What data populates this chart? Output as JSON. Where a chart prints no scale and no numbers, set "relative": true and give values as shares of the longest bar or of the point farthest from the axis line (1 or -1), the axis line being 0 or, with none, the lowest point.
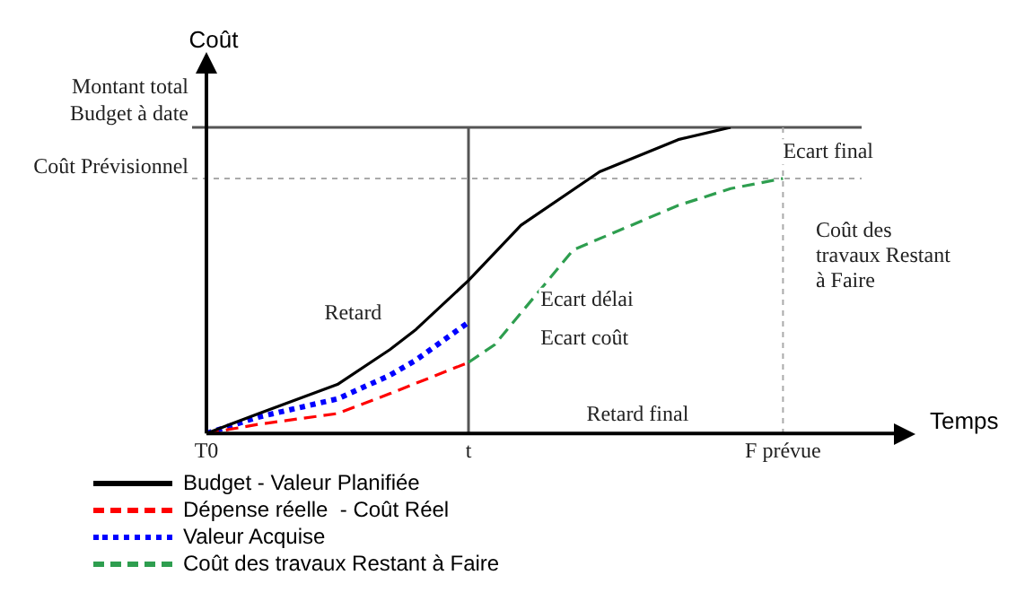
{
  "chart_data": {
    "type": "line",
    "relative": true,
    "ylabel": "Coût",
    "xlabel": "Temps",
    "categories": [
      "T0",
      null,
      null,
      null,
      null,
      null,
      null,
      null,
      null,
      null,
      "t",
      null,
      null,
      null,
      null,
      null,
      null,
      null,
      null,
      null,
      null,
      null,
      "F prévue",
      null,
      null,
      null
    ],
    "legend": "bottom left",
    "series": [
      {
        "name": "Budget - Valeur Planifiée",
        "color": "#000000",
        "line_style": "solid",
        "values": [
          0,
          null,
          0.065,
          null,
          null,
          0.16,
          null,
          0.274,
          0.34,
          null,
          0.5,
          null,
          0.68,
          null,
          null,
          0.855,
          null,
          null,
          0.96,
          null,
          1,
          null,
          null,
          null,
          null,
          null
        ]
      },
      {
        "name": "Dépense réelle  - Coût Réel",
        "color": "#ff0000",
        "line_style": "dashed",
        "values": [
          0,
          null,
          0.03,
          null,
          null,
          0.065,
          null,
          0.13,
          null,
          null,
          0.232,
          null,
          null,
          null,
          null,
          null,
          null,
          null,
          null,
          null,
          null,
          null,
          null,
          null,
          null,
          null
        ]
      },
      {
        "name": "Valeur Acquise",
        "color": "#0000ff",
        "line_style": "dotted",
        "values": [
          0,
          null,
          0.054,
          null,
          null,
          0.113,
          null,
          0.19,
          0.24,
          null,
          0.363,
          null,
          null,
          null,
          null,
          null,
          null,
          null,
          null,
          null,
          null,
          null,
          null,
          null,
          null,
          null
        ]
      },
      {
        "name": "Coût des travaux Restant à Faire",
        "color": "#2e9e4f",
        "line_style": "dashed",
        "values": [
          null,
          null,
          null,
          null,
          null,
          null,
          null,
          null,
          null,
          null,
          0.232,
          0.29,
          null,
          null,
          0.6,
          null,
          null,
          null,
          0.745,
          null,
          0.8,
          null,
          0.833,
          null,
          null,
          null
        ]
      }
    ],
    "ref_lines": [
      {
        "axis": "y",
        "value": 1,
        "label": "Montant total\nBudget à date",
        "color": "#555555",
        "line_style": "solid"
      },
      {
        "axis": "y",
        "value": 0.833,
        "label": "Coût Prévisionnel",
        "color": "#aaaaaa",
        "line_style": "dotted"
      },
      {
        "axis": "x",
        "value": "t",
        "color": "#555555",
        "line_style": "solid"
      },
      {
        "axis": "x",
        "value": "F prévue",
        "color": "#aaaaaa",
        "line_style": "dotted"
      }
    ],
    "annotations": [
      "Retard",
      "Ecart délai",
      "Ecart coût",
      "Ecart final",
      "Coût des\ntravaux Restant\nà Faire",
      "Retard final"
    ]
  }
}
